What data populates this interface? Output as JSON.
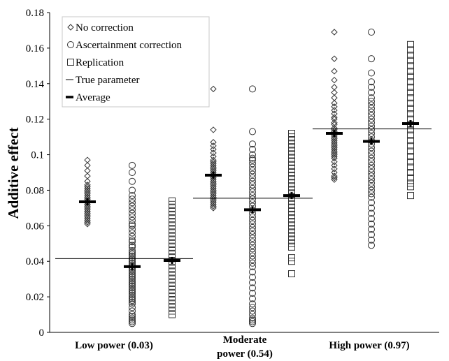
{
  "chart_data": {
    "type": "scatter",
    "title": "",
    "ylabel": "Additive effect",
    "xlabel": "",
    "ylim": [
      0,
      0.18
    ],
    "yticks": [
      0,
      0.02,
      0.04,
      0.06,
      0.08,
      0.1,
      0.12,
      0.14,
      0.16,
      0.18
    ],
    "ytick_labels": [
      "0",
      "0.02",
      "0.04",
      "0.06",
      "0.08",
      "0.1",
      "0.12",
      "0.14",
      "0.16",
      "0.18"
    ],
    "categories": [
      {
        "lines": [
          "Low power (0.03)"
        ]
      },
      {
        "lines": [
          "Moderate",
          "power (0.54)"
        ]
      },
      {
        "lines": [
          "High power (0.97)"
        ]
      }
    ],
    "legend": {
      "placement": "top-left",
      "entries": [
        {
          "label": "No correction",
          "marker": "diamond"
        },
        {
          "label": "Ascertainment correction",
          "marker": "circle"
        },
        {
          "label": "Replication",
          "marker": "square"
        },
        {
          "label": "True parameter",
          "marker": "thin-line"
        },
        {
          "label": "Average",
          "marker": "thick-line"
        }
      ]
    },
    "true_parameter": [
      0.0415,
      0.0755,
      0.1145
    ],
    "averages": [
      [
        0.0735,
        0.037,
        0.0405
      ],
      [
        0.0885,
        0.069,
        0.077
      ],
      [
        0.112,
        0.1075,
        0.1175
      ]
    ],
    "series": [
      {
        "name": "No correction",
        "marker": "diamond",
        "values": [
          [
            0.097,
            0.094,
            0.091,
            0.088,
            0.085,
            0.083,
            0.082,
            0.081,
            0.08,
            0.079,
            0.078,
            0.077,
            0.076,
            0.075,
            0.075,
            0.074,
            0.073,
            0.072,
            0.072,
            0.071,
            0.07,
            0.069,
            0.068,
            0.068,
            0.067,
            0.066,
            0.065,
            0.064,
            0.063,
            0.062,
            0.061
          ],
          [
            0.137,
            0.114,
            0.107,
            0.105,
            0.103,
            0.101,
            0.099,
            0.097,
            0.096,
            0.095,
            0.094,
            0.093,
            0.092,
            0.091,
            0.09,
            0.089,
            0.088,
            0.087,
            0.086,
            0.085,
            0.084,
            0.083,
            0.082,
            0.081,
            0.08,
            0.079,
            0.078,
            0.077,
            0.076,
            0.075,
            0.074,
            0.073,
            0.072,
            0.071,
            0.07
          ],
          [
            0.169,
            0.154,
            0.147,
            0.142,
            0.138,
            0.135,
            0.132,
            0.129,
            0.127,
            0.125,
            0.123,
            0.121,
            0.12,
            0.118,
            0.117,
            0.115,
            0.114,
            0.113,
            0.112,
            0.111,
            0.11,
            0.109,
            0.108,
            0.107,
            0.106,
            0.105,
            0.104,
            0.103,
            0.102,
            0.101,
            0.1,
            0.099,
            0.098,
            0.096,
            0.094,
            0.092,
            0.09,
            0.088,
            0.087,
            0.086
          ]
        ]
      },
      {
        "name": "Ascertainment correction",
        "marker": "circle",
        "values": [
          [
            0.094,
            0.09,
            0.085,
            0.08,
            0.077,
            0.075,
            0.073,
            0.071,
            0.069,
            0.067,
            0.065,
            0.063,
            0.061,
            0.06,
            0.058,
            0.056,
            0.054,
            0.052,
            0.051,
            0.049,
            0.048,
            0.046,
            0.045,
            0.044,
            0.043,
            0.042,
            0.041,
            0.04,
            0.039,
            0.038,
            0.037,
            0.036,
            0.035,
            0.034,
            0.033,
            0.032,
            0.031,
            0.03,
            0.029,
            0.028,
            0.027,
            0.026,
            0.025,
            0.024,
            0.023,
            0.022,
            0.021,
            0.02,
            0.019,
            0.018,
            0.017,
            0.016,
            0.014,
            0.012,
            0.01,
            0.009,
            0.008,
            0.007,
            0.006,
            0.005
          ],
          [
            0.137,
            0.113,
            0.106,
            0.103,
            0.1,
            0.098,
            0.097,
            0.095,
            0.093,
            0.091,
            0.089,
            0.087,
            0.085,
            0.083,
            0.081,
            0.079,
            0.077,
            0.075,
            0.073,
            0.071,
            0.069,
            0.067,
            0.065,
            0.063,
            0.061,
            0.059,
            0.057,
            0.055,
            0.053,
            0.051,
            0.049,
            0.047,
            0.045,
            0.043,
            0.041,
            0.039,
            0.037,
            0.034,
            0.031,
            0.028,
            0.025,
            0.022,
            0.019,
            0.016,
            0.014,
            0.012,
            0.01,
            0.008,
            0.007,
            0.006,
            0.005
          ],
          [
            0.169,
            0.154,
            0.146,
            0.141,
            0.138,
            0.135,
            0.132,
            0.13,
            0.128,
            0.126,
            0.124,
            0.122,
            0.12,
            0.118,
            0.116,
            0.114,
            0.112,
            0.11,
            0.108,
            0.106,
            0.104,
            0.102,
            0.1,
            0.098,
            0.096,
            0.094,
            0.092,
            0.09,
            0.088,
            0.086,
            0.084,
            0.082,
            0.08,
            0.078,
            0.076,
            0.073,
            0.07,
            0.067,
            0.064,
            0.061,
            0.058,
            0.055,
            0.052,
            0.049
          ]
        ]
      },
      {
        "name": "Replication",
        "marker": "square",
        "values": [
          [
            0.074,
            0.072,
            0.07,
            0.068,
            0.066,
            0.064,
            0.062,
            0.06,
            0.058,
            0.056,
            0.054,
            0.052,
            0.05,
            0.048,
            0.046,
            0.044,
            0.042,
            0.04,
            0.038,
            0.036,
            0.034,
            0.032,
            0.03,
            0.028,
            0.026,
            0.024,
            0.022,
            0.02,
            0.018,
            0.016,
            0.014,
            0.012,
            0.01
          ],
          [
            0.112,
            0.11,
            0.108,
            0.106,
            0.104,
            0.102,
            0.1,
            0.098,
            0.096,
            0.094,
            0.092,
            0.09,
            0.088,
            0.086,
            0.084,
            0.082,
            0.08,
            0.078,
            0.076,
            0.074,
            0.072,
            0.07,
            0.068,
            0.066,
            0.064,
            0.062,
            0.06,
            0.058,
            0.056,
            0.054,
            0.052,
            0.05,
            0.048,
            0.042,
            0.04,
            0.033
          ],
          [
            0.162,
            0.159,
            0.156,
            0.153,
            0.15,
            0.147,
            0.144,
            0.141,
            0.138,
            0.135,
            0.132,
            0.129,
            0.126,
            0.123,
            0.12,
            0.117,
            0.114,
            0.111,
            0.108,
            0.105,
            0.102,
            0.099,
            0.096,
            0.093,
            0.09,
            0.087,
            0.084,
            0.082,
            0.077
          ]
        ]
      }
    ]
  }
}
